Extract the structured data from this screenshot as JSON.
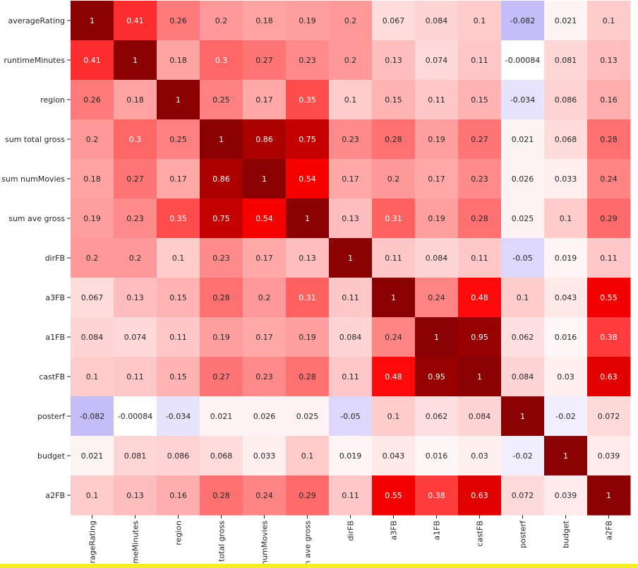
{
  "chart_data": {
    "type": "heatmap",
    "title": "",
    "xlabel": "",
    "ylabel": "",
    "color_scale": {
      "min_value": -0.1,
      "center_value": 0,
      "max_value": 1,
      "neg_color": "#b8aef6",
      "zero_color": "#ffffff",
      "mid_color": "#ff0000",
      "max_color": "#8b0000"
    },
    "row_labels": [
      "averageRating",
      "runtimeMinutes",
      "region",
      "sum total gross",
      "sum numMovies",
      "sum ave gross",
      "dirFB",
      "a3FB",
      "a1FB",
      "castFB",
      "posterf",
      "budget",
      "a2FB"
    ],
    "col_labels": [
      "averageRating",
      "runtimeMinutes",
      "region",
      "sum total gross",
      "sum numMovies",
      "sum ave gross",
      "dirFB",
      "a3FB",
      "a1FB",
      "castFB",
      "posterf",
      "budget",
      "a2FB"
    ],
    "col_labels_visible": [
      "erageRating",
      "meMinutes",
      "region",
      "n total gross",
      "numMovies",
      "n ave gross",
      "dirFB",
      "a3FB",
      "a1FB",
      "castFB",
      "posterf",
      "budget",
      "a2FB"
    ],
    "cells": [
      [
        "1",
        "0.41",
        "0.26",
        "0.2",
        "0.18",
        "0.19",
        "0.2",
        "0.067",
        "0.084",
        "0.1",
        "-0.082",
        "0.021",
        "0.1"
      ],
      [
        "0.41",
        "1",
        "0.18",
        "0.3",
        "0.27",
        "0.23",
        "0.2",
        "0.13",
        "0.074",
        "0.11",
        "-0.00084",
        "0.081",
        "0.13"
      ],
      [
        "0.26",
        "0.18",
        "1",
        "0.25",
        "0.17",
        "0.35",
        "0.1",
        "0.15",
        "0.11",
        "0.15",
        "-0.034",
        "0.086",
        "0.16"
      ],
      [
        "0.2",
        "0.3",
        "0.25",
        "1",
        "0.86",
        "0.75",
        "0.23",
        "0.28",
        "0.19",
        "0.27",
        "0.021",
        "0.068",
        "0.28"
      ],
      [
        "0.18",
        "0.27",
        "0.17",
        "0.86",
        "1",
        "0.54",
        "0.17",
        "0.2",
        "0.17",
        "0.23",
        "0.026",
        "0.033",
        "0.24"
      ],
      [
        "0.19",
        "0.23",
        "0.35",
        "0.75",
        "0.54",
        "1",
        "0.13",
        "0.31",
        "0.19",
        "0.28",
        "0.025",
        "0.1",
        "0.29"
      ],
      [
        "0.2",
        "0.2",
        "0.1",
        "0.23",
        "0.17",
        "0.13",
        "1",
        "0.11",
        "0.084",
        "0.11",
        "-0.05",
        "0.019",
        "0.11"
      ],
      [
        "0.067",
        "0.13",
        "0.15",
        "0.28",
        "0.2",
        "0.31",
        "0.11",
        "1",
        "0.24",
        "0.48",
        "0.1",
        "0.043",
        "0.55"
      ],
      [
        "0.084",
        "0.074",
        "0.11",
        "0.19",
        "0.17",
        "0.19",
        "0.084",
        "0.24",
        "1",
        "0.95",
        "0.062",
        "0.016",
        "0.38"
      ],
      [
        "0.1",
        "0.11",
        "0.15",
        "0.27",
        "0.23",
        "0.28",
        "0.11",
        "0.48",
        "0.95",
        "1",
        "0.084",
        "0.03",
        "0.63"
      ],
      [
        "-0.082",
        "-0.00084",
        "-0.034",
        "0.021",
        "0.026",
        "0.025",
        "-0.05",
        "0.1",
        "0.062",
        "0.084",
        "1",
        "-0.02",
        "0.072"
      ],
      [
        "0.021",
        "0.081",
        "0.086",
        "0.068",
        "0.033",
        "0.1",
        "0.019",
        "0.043",
        "0.016",
        "0.03",
        "-0.02",
        "1",
        "0.039"
      ],
      [
        "0.1",
        "0.13",
        "0.16",
        "0.28",
        "0.24",
        "0.29",
        "0.11",
        "0.55",
        "0.38",
        "0.63",
        "0.072",
        "0.039",
        "1"
      ]
    ]
  }
}
